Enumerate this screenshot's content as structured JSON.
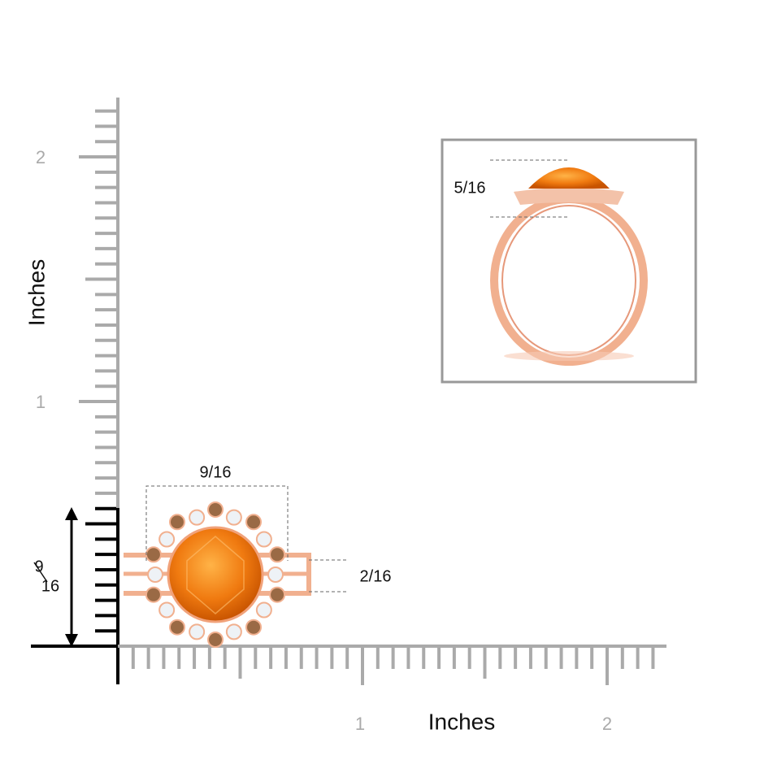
{
  "y_axis": {
    "label": "Inches",
    "tick_labels": [
      "2",
      "1"
    ]
  },
  "x_axis": {
    "label": "Inches",
    "tick_labels": [
      "1",
      "2"
    ]
  },
  "side_view": {
    "height_label": "5/16"
  },
  "top_view": {
    "width_label": "9/16",
    "band_label": "2/16",
    "height_numerator": "9",
    "height_denominator": "16"
  }
}
